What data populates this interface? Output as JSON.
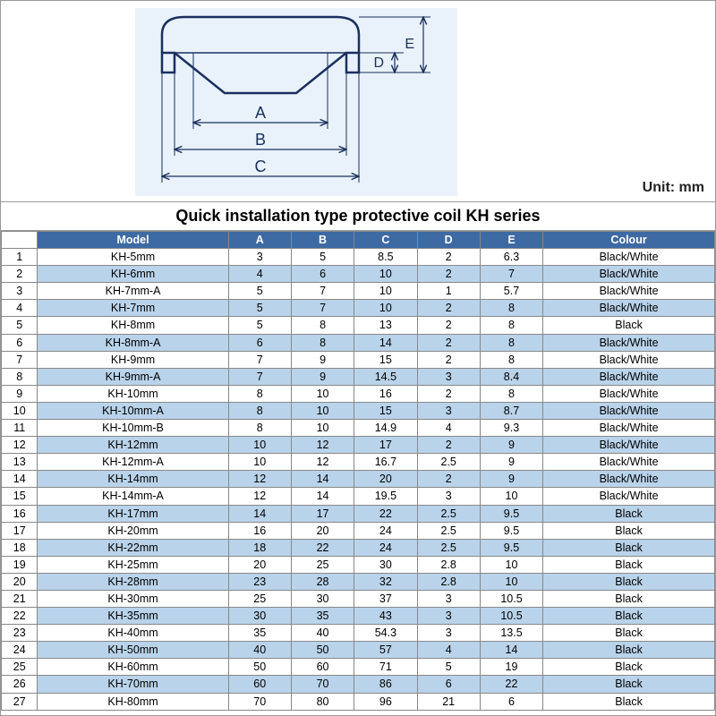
{
  "unit_label": "Unit: mm",
  "title": "Quick installation type protective coil KH series",
  "header_bg": "#3d6aa3",
  "header_fg": "#ffffff",
  "row_alt_bg": "#b9d3ea",
  "border_color": "#888888",
  "diagram": {
    "stroke": "#1a2f5f",
    "fill_bg": "#e9f2fa",
    "labels": [
      "A",
      "B",
      "C",
      "D",
      "E"
    ]
  },
  "columns": [
    {
      "key": "idx",
      "label": ""
    },
    {
      "key": "model",
      "label": "Model"
    },
    {
      "key": "a",
      "label": "A"
    },
    {
      "key": "b",
      "label": "B"
    },
    {
      "key": "c",
      "label": "C"
    },
    {
      "key": "d",
      "label": "D"
    },
    {
      "key": "e",
      "label": "E"
    },
    {
      "key": "colour",
      "label": "Colour"
    }
  ],
  "rows": [
    {
      "idx": "1",
      "model": "KH-5mm",
      "a": "3",
      "b": "5",
      "c": "8.5",
      "d": "2",
      "e": "6.3",
      "colour": "Black/White"
    },
    {
      "idx": "2",
      "model": "KH-6mm",
      "a": "4",
      "b": "6",
      "c": "10",
      "d": "2",
      "e": "7",
      "colour": "Black/White"
    },
    {
      "idx": "3",
      "model": "KH-7mm-A",
      "a": "5",
      "b": "7",
      "c": "10",
      "d": "1",
      "e": "5.7",
      "colour": "Black/White"
    },
    {
      "idx": "4",
      "model": "KH-7mm",
      "a": "5",
      "b": "7",
      "c": "10",
      "d": "2",
      "e": "8",
      "colour": "Black/White"
    },
    {
      "idx": "5",
      "model": "KH-8mm",
      "a": "5",
      "b": "8",
      "c": "13",
      "d": "2",
      "e": "8",
      "colour": "Black"
    },
    {
      "idx": "6",
      "model": "KH-8mm-A",
      "a": "6",
      "b": "8",
      "c": "14",
      "d": "2",
      "e": "8",
      "colour": "Black/White"
    },
    {
      "idx": "7",
      "model": "KH-9mm",
      "a": "7",
      "b": "9",
      "c": "15",
      "d": "2",
      "e": "8",
      "colour": "Black/White"
    },
    {
      "idx": "8",
      "model": "KH-9mm-A",
      "a": "7",
      "b": "9",
      "c": "14.5",
      "d": "3",
      "e": "8.4",
      "colour": "Black/White"
    },
    {
      "idx": "9",
      "model": "KH-10mm",
      "a": "8",
      "b": "10",
      "c": "16",
      "d": "2",
      "e": "8",
      "colour": "Black/White"
    },
    {
      "idx": "10",
      "model": "KH-10mm-A",
      "a": "8",
      "b": "10",
      "c": "15",
      "d": "3",
      "e": "8.7",
      "colour": "Black/White"
    },
    {
      "idx": "11",
      "model": "KH-10mm-B",
      "a": "8",
      "b": "10",
      "c": "14.9",
      "d": "4",
      "e": "9.3",
      "colour": "Black/White"
    },
    {
      "idx": "12",
      "model": "KH-12mm",
      "a": "10",
      "b": "12",
      "c": "17",
      "d": "2",
      "e": "9",
      "colour": "Black/White"
    },
    {
      "idx": "13",
      "model": "KH-12mm-A",
      "a": "10",
      "b": "12",
      "c": "16.7",
      "d": "2.5",
      "e": "9",
      "colour": "Black/White"
    },
    {
      "idx": "14",
      "model": "KH-14mm",
      "a": "12",
      "b": "14",
      "c": "20",
      "d": "2",
      "e": "9",
      "colour": "Black/White"
    },
    {
      "idx": "15",
      "model": "KH-14mm-A",
      "a": "12",
      "b": "14",
      "c": "19.5",
      "d": "3",
      "e": "10",
      "colour": "Black/White"
    },
    {
      "idx": "16",
      "model": "KH-17mm",
      "a": "14",
      "b": "17",
      "c": "22",
      "d": "2.5",
      "e": "9.5",
      "colour": "Black"
    },
    {
      "idx": "17",
      "model": "KH-20mm",
      "a": "16",
      "b": "20",
      "c": "24",
      "d": "2.5",
      "e": "9.5",
      "colour": "Black"
    },
    {
      "idx": "18",
      "model": "KH-22mm",
      "a": "18",
      "b": "22",
      "c": "24",
      "d": "2.5",
      "e": "9.5",
      "colour": "Black"
    },
    {
      "idx": "19",
      "model": "KH-25mm",
      "a": "20",
      "b": "25",
      "c": "30",
      "d": "2.8",
      "e": "10",
      "colour": "Black"
    },
    {
      "idx": "20",
      "model": "KH-28mm",
      "a": "23",
      "b": "28",
      "c": "32",
      "d": "2.8",
      "e": "10",
      "colour": "Black"
    },
    {
      "idx": "21",
      "model": "KH-30mm",
      "a": "25",
      "b": "30",
      "c": "37",
      "d": "3",
      "e": "10.5",
      "colour": "Black"
    },
    {
      "idx": "22",
      "model": "KH-35mm",
      "a": "30",
      "b": "35",
      "c": "43",
      "d": "3",
      "e": "10.5",
      "colour": "Black"
    },
    {
      "idx": "23",
      "model": "KH-40mm",
      "a": "35",
      "b": "40",
      "c": "54.3",
      "d": "3",
      "e": "13.5",
      "colour": "Black"
    },
    {
      "idx": "24",
      "model": "KH-50mm",
      "a": "40",
      "b": "50",
      "c": "57",
      "d": "4",
      "e": "14",
      "colour": "Black"
    },
    {
      "idx": "25",
      "model": "KH-60mm",
      "a": "50",
      "b": "60",
      "c": "71",
      "d": "5",
      "e": "19",
      "colour": "Black"
    },
    {
      "idx": "26",
      "model": "KH-70mm",
      "a": "60",
      "b": "70",
      "c": "86",
      "d": "6",
      "e": "22",
      "colour": "Black"
    },
    {
      "idx": "27",
      "model": "KH-80mm",
      "a": "70",
      "b": "80",
      "c": "96",
      "d": "21",
      "e": "6",
      "colour": "Black"
    }
  ]
}
